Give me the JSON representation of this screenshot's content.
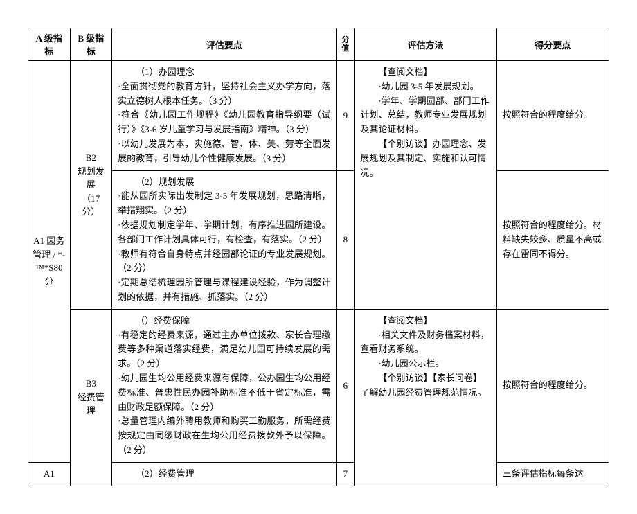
{
  "headers": {
    "colA": "A 级指标",
    "colB": "B 级指标",
    "colC": "评估要点",
    "colD": "分值",
    "colE": "评估方法",
    "colF": "得分要点"
  },
  "rows": {
    "a1": "A1 园务管理 / *-™*S80 分",
    "a1b": "A1",
    "b2": "B2\n规划发展\n（17 分）",
    "b3": "B3\n经费管理",
    "b3b": "B3",
    "c1": {
      "title": "（1）办园理念",
      "p1": "·全面贯彻党的教育方针，坚持社会主义办学方向，落实立德树人根本任务。（3 分）",
      "p2": "·符合《幼儿园工作规程》《幼儿园教育指导纲要（试行）》《3-6 岁儿童学习与发展指南》精神。（3 分）",
      "p3": "·以幼儿发展为本，实施德、智、体、美、劳等全面发展的教育，引导幼儿个性健康发展。（3 分）"
    },
    "c2": {
      "title": "（2）规划发展",
      "p1": "·能从园所实际出发制定 3-5 年发展规划，思路清晰，举措翔实。（2 分）",
      "p2": "·依据规划制定学年、学期计划，有序推进园所建设。各部门工作计划具体可行，有检查，有落实。（2 分）",
      "p3": "·教师有符合自身特点并经园部论证的专业发展规划。（2 分）",
      "p4": "·定期总结梳理园所管理与课程建设经验，作为调整计划的依据，并有措施、抓落实。（2 分）"
    },
    "c3": {
      "title": "（）经费保障",
      "p1": "·有稳定的经费来源，通过主办单位拨款、家长合理缴费等多种渠道落实经费，满足幼儿园可持续发展的需求。（2 分）",
      "p2": "·幼儿园生均公用经费来源有保障，公办园生均公用经费标准、普惠性民办园补助标准不低于省定标准，需由财政足额保障。（2 分）",
      "p3": "·总量管理内编外聘用教师和购买工勤服务，所需经费按规定由同级财政在生均公用经费拨款外予以保障。（2 分）"
    },
    "c4": {
      "title": "（2）经费管理"
    },
    "d1": "9",
    "d2": "8",
    "d3": "6",
    "d4": "7",
    "e12": {
      "t1": "【查阅文档】",
      "p1": "·幼儿园 3-5 年发展规划。",
      "p2": "·学年、学期园部、部门工作计划、总结，教师专业发展规划及其论证材料。",
      "t2": "【个别访谈】办园理念、发展规划及其制定、实施和认可情况。"
    },
    "e34": {
      "t1": "【查阅文档】",
      "p1": "·相关文件及财务档案材料，查看财务系统。",
      "p2": "·幼儿园公示栏。",
      "t2": "【个别访谈】【家长问卷】了解幼儿园经费管理规范情况。"
    },
    "f1": "按照符合的程度给分。",
    "f2": "按照符合的程度给分。材料缺失较多、质量不高或存在雷同不得分。",
    "f3": "按照符合的程度给分。",
    "f4": "三条评估指标每条达"
  }
}
